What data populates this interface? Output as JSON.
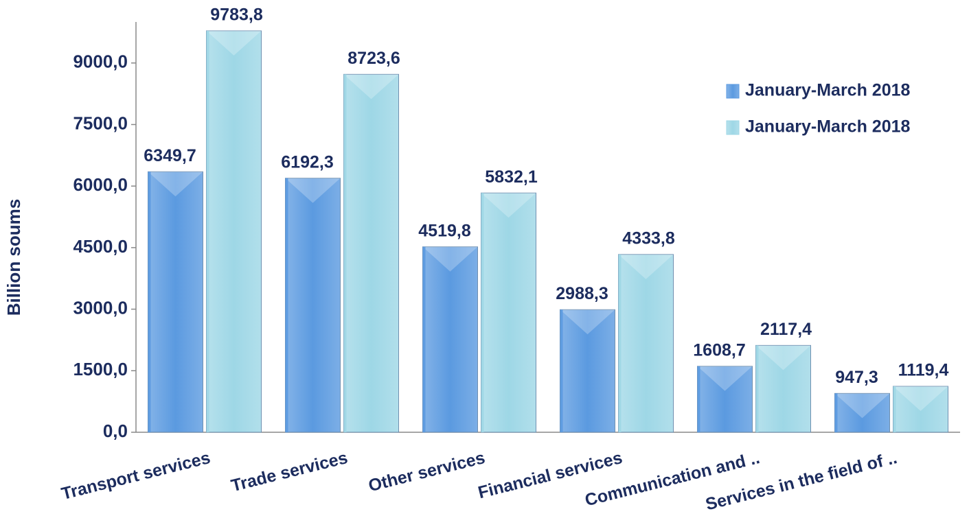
{
  "chart_data": {
    "type": "bar",
    "categories": [
      "Transport services",
      "Trade services",
      "Other services",
      "Financial services",
      "Communication and ..",
      "Services in the field of .."
    ],
    "series": [
      {
        "name": "January-March 2018",
        "color": "#5b9ae0",
        "values": [
          6349.7,
          6192.3,
          4519.8,
          2988.3,
          1608.7,
          947.3
        ],
        "value_labels": [
          "6349,7",
          "6192,3",
          "4519,8",
          "2988,3",
          "1608,7",
          "947,3"
        ]
      },
      {
        "name": "January-March 2018",
        "color": "#9ed7e6",
        "values": [
          9783.8,
          8723.6,
          5832.1,
          4333.8,
          2117.4,
          1119.4
        ],
        "value_labels": [
          "9783,8",
          "8723,6",
          "5832,1",
          "4333,8",
          "2117,4",
          "1119,4"
        ]
      }
    ],
    "y_label": "Billion soums",
    "ylim": [
      0,
      10000
    ],
    "yticks": [
      {
        "value": 0,
        "label": "0,0"
      },
      {
        "value": 1500,
        "label": "1500,0"
      },
      {
        "value": 3000,
        "label": "3000,0"
      },
      {
        "value": 4500,
        "label": "4500,0"
      },
      {
        "value": 6000,
        "label": "6000,0"
      },
      {
        "value": 7500,
        "label": "7500,0"
      },
      {
        "value": 9000,
        "label": "9000,0"
      }
    ],
    "legend": "upper right"
  }
}
